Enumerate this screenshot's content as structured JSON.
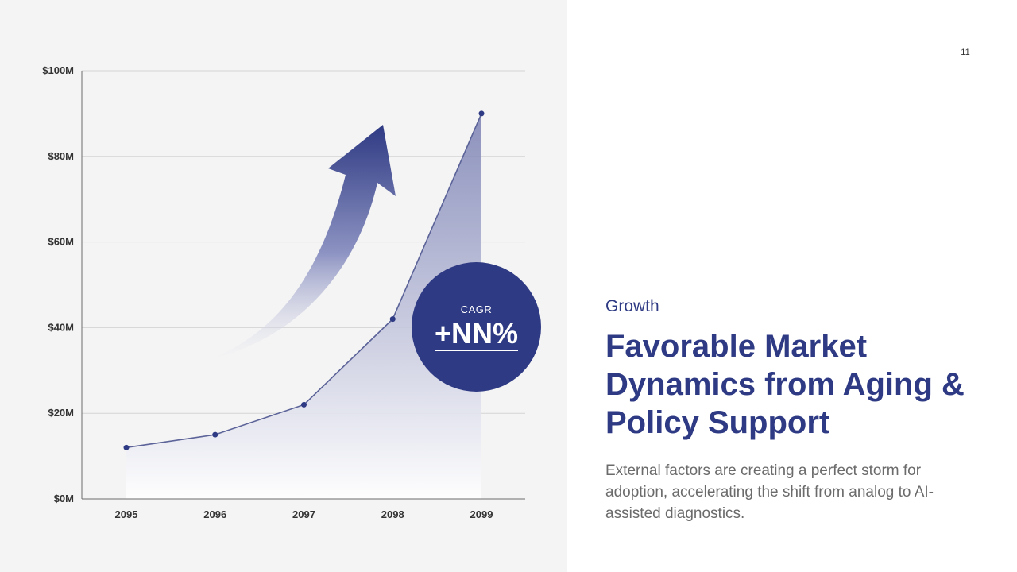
{
  "page_number": "11",
  "eyebrow": "Growth",
  "title": "Favorable Market Dynamics from Aging & Policy Support",
  "description": "External factors are creating a perfect storm for adoption, accelerating the shift from analog to AI-assisted diagnostics.",
  "cagr": {
    "label": "CAGR",
    "value": "+NN%"
  },
  "colors": {
    "accent": "#2e3a83",
    "line": "#5b6398",
    "grid": "#d4d4d4",
    "panel_bg": "#f4f4f4"
  },
  "chart_data": {
    "type": "area",
    "title": "",
    "xlabel": "",
    "ylabel": "",
    "x": [
      "2095",
      "2096",
      "2097",
      "2098",
      "2099"
    ],
    "values": [
      12,
      15,
      22,
      42,
      90
    ],
    "unit": "M",
    "ylim": [
      0,
      100
    ],
    "yticks": [
      0,
      20,
      40,
      60,
      80,
      100
    ],
    "ytick_labels": [
      "$0M",
      "$20M",
      "$40M",
      "$60M",
      "$80M",
      "$100M"
    ],
    "grid": true,
    "annotation": "upward growth arrow"
  }
}
